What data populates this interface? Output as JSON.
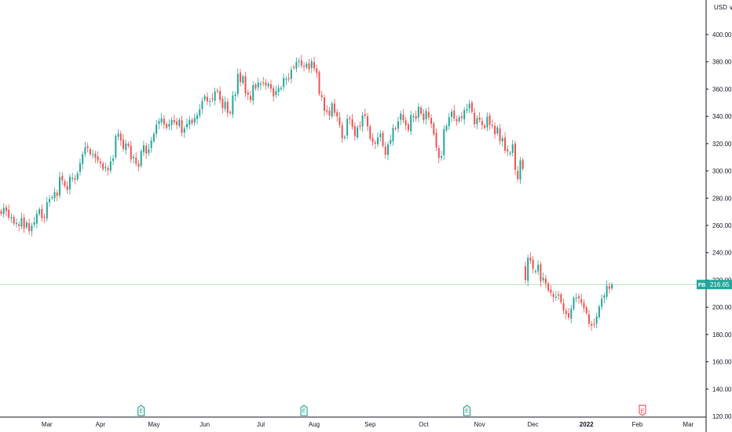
{
  "currency": "USD",
  "currency_suffix": "∨",
  "symbol_tag": "FB",
  "last_price_label": "216.65",
  "colors": {
    "up": "#26a69a",
    "down": "#ef5350",
    "price_line": "#b2dfb6",
    "axis_line": "#131722",
    "earnings_up": "#089981",
    "earnings_down": "#f23645"
  },
  "chart_data": {
    "type": "candlestick",
    "ylim": [
      120,
      420
    ],
    "y_ticks": [
      "140.00",
      "160.00",
      "180.00",
      "200.00",
      "220.00",
      "240.00",
      "260.00",
      "280.00",
      "300.00",
      "320.00",
      "340.00",
      "360.00",
      "380.00",
      "400.00"
    ],
    "y_bottom_label": "120.00",
    "x_ticks": [
      {
        "label": "Mar",
        "index": 18,
        "bold": false
      },
      {
        "label": "Apr",
        "index": 39,
        "bold": false
      },
      {
        "label": "May",
        "index": 60,
        "bold": false
      },
      {
        "label": "Jun",
        "index": 80,
        "bold": false
      },
      {
        "label": "Jul",
        "index": 102,
        "bold": false
      },
      {
        "label": "Aug",
        "index": 123,
        "bold": false
      },
      {
        "label": "Sep",
        "index": 145,
        "bold": false
      },
      {
        "label": "Oct",
        "index": 166,
        "bold": false
      },
      {
        "label": "Nov",
        "index": 188,
        "bold": false
      },
      {
        "label": "Dec",
        "index": 209,
        "bold": false
      },
      {
        "label": "2022",
        "index": 230,
        "bold": true
      },
      {
        "label": "Feb",
        "index": 250,
        "bold": false
      },
      {
        "label": "Mar",
        "index": 270,
        "bold": false
      }
    ],
    "earnings_markers": [
      {
        "index": 55,
        "label": "E",
        "direction": "up"
      },
      {
        "index": 119,
        "label": "E",
        "direction": "up"
      },
      {
        "index": 183,
        "label": "E",
        "direction": "up"
      },
      {
        "index": 252,
        "label": "E",
        "direction": "down"
      }
    ],
    "last_price": 216.65,
    "close": [
      268.6,
      272.9,
      270.6,
      265.8,
      266.2,
      261.3,
      261.8,
      259.5,
      265.4,
      257.8,
      262.3,
      255.9,
      259.9,
      262.3,
      268.7,
      271.8,
      265.4,
      265.7,
      277,
      279.4,
      280.9,
      284.4,
      281.7,
      295.5,
      293,
      289,
      285.9,
      295.7,
      294.8,
      293.5,
      298.3,
      305.7,
      312.3,
      317.4,
      316.8,
      312.2,
      312.3,
      309.7,
      307.5,
      305.5,
      301.3,
      302.9,
      300.5,
      307,
      309.1,
      325.6,
      327.3,
      322.3,
      316.2,
      320.2,
      318.3,
      308.5,
      310.4,
      305.3,
      303.1,
      314.6,
      318.8,
      312.8,
      315.8,
      322.3,
      327.3,
      333.9,
      336.5,
      338.6,
      334.1,
      331.6,
      334.4,
      337.3,
      335.6,
      333.8,
      337.5,
      327.9,
      331.1,
      334.5,
      337.4,
      334.9,
      338.8,
      340.9,
      345.1,
      351.2,
      354.9,
      351,
      351.4,
      352.4,
      358.3,
      358.3,
      352.1,
      346.1,
      350.7,
      342.6,
      342.3,
      355.3,
      356.1,
      371.2,
      365.1,
      369.4,
      356.9,
      355.8,
      351.9,
      363,
      360.4,
      364.9,
      364,
      364.2,
      362.8,
      363.9,
      360.3,
      354.7,
      358.5,
      360.7,
      360.9,
      368.2,
      367.5,
      367.2,
      374.2,
      375.6,
      380,
      380.6,
      377.3,
      376.3,
      378.6,
      374.6,
      380.4,
      375.1,
      371.8,
      356.4,
      354.1,
      344.1,
      343.3,
      340.5,
      349.5,
      342.6,
      340,
      333.7,
      323.8,
      325,
      338.1,
      337.9,
      332.2,
      325.4,
      332.1,
      332.3,
      340.9,
      340.6,
      332.6,
      323.6,
      321.2,
      319.9,
      324.4,
      327.1,
      318.4,
      311.8,
      319.4,
      322.7,
      331.7,
      330.7,
      336.5,
      342,
      337.1,
      333.5,
      329.8,
      340.9,
      340.1,
      338.2,
      347.1,
      342,
      337.3,
      344,
      339.2,
      334.5,
      326.9,
      317.3,
      309.5,
      310.8,
      330.6,
      333.1,
      339.3,
      343.4,
      338.5,
      336.4,
      339.4,
      338.7,
      344.6,
      345.4,
      349.2,
      343.3,
      334.3,
      338.6,
      337.5,
      333.6,
      331.6,
      339.6,
      333.8,
      333,
      326.8,
      332,
      321.9,
      324.2,
      314.9,
      314.3,
      313.2,
      319.5,
      300.8,
      294,
      307.7,
      301.5,
      220,
      236.4,
      234.2,
      228.1,
      226.6,
      231.2,
      219,
      221.6,
      217.4,
      212.3,
      210.6,
      207.6,
      207.7,
      208.5,
      203.6,
      197.5,
      195,
      192.5,
      199.1,
      206.9,
      207.1,
      206.6,
      203.2,
      199.4,
      195.7,
      188,
      186.5,
      187,
      193.2,
      200.5,
      206.2,
      208.6,
      215.7,
      213.5,
      216.65
    ],
    "volume": []
  }
}
